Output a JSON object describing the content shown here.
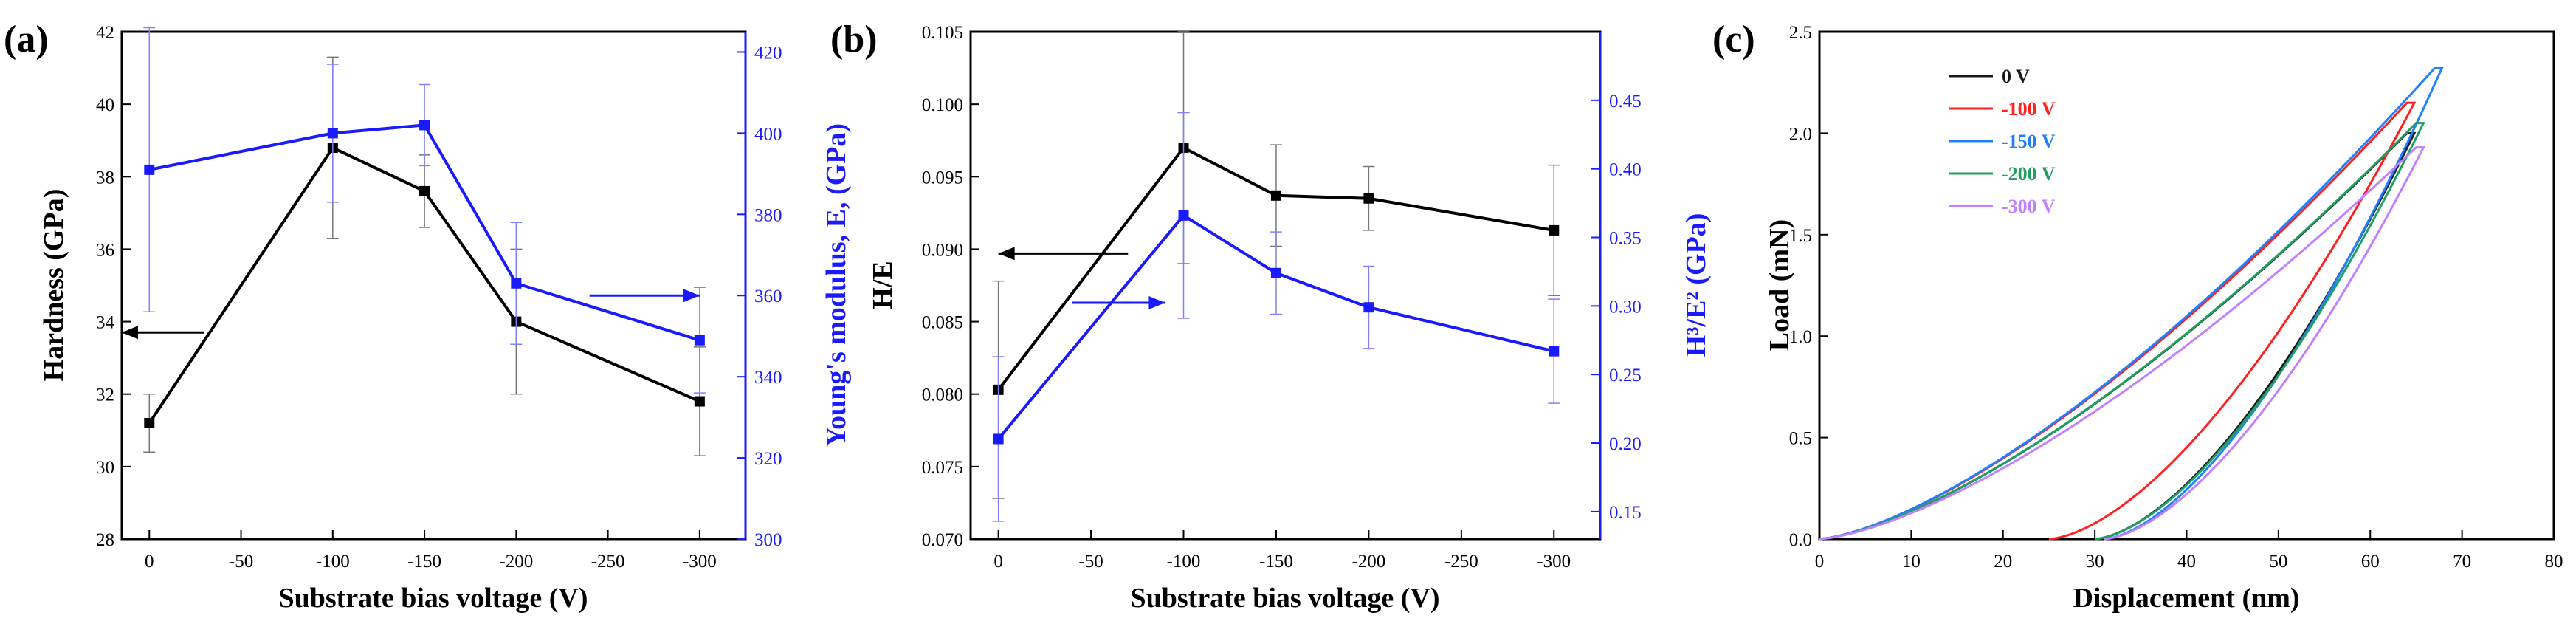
{
  "chart_data": [
    {
      "panel": "(a)",
      "type": "line",
      "xlabel": "Substrate bias voltage (V)",
      "x_ticks": [
        "0",
        "-50",
        "-100",
        "-150",
        "-200",
        "-250",
        "-300"
      ],
      "x": [
        0,
        -100,
        -150,
        -200,
        -300
      ],
      "xlim": [
        15,
        -325
      ],
      "ylabel_left": "Hardness (GPa)",
      "ylim_left": [
        28,
        42
      ],
      "y_ticks_left": [
        "28",
        "30",
        "32",
        "34",
        "36",
        "38",
        "40",
        "42"
      ],
      "ylabel_right": "Young's modulus, E, (GPa)",
      "ylim_right": [
        300,
        425
      ],
      "y_ticks_right": [
        "300",
        "320",
        "340",
        "360",
        "380",
        "400",
        "420"
      ],
      "series": [
        {
          "name": "Hardness",
          "axis": "left",
          "color": "#000000",
          "values": [
            31.2,
            38.8,
            37.6,
            34.0,
            31.8
          ],
          "errors": [
            0.8,
            2.5,
            1.0,
            2.0,
            1.5
          ]
        },
        {
          "name": "Young's modulus",
          "axis": "right",
          "color": "#1a1aff",
          "values": [
            391,
            400,
            402,
            363,
            349
          ],
          "errors": [
            35,
            17,
            10,
            15,
            13
          ]
        }
      ],
      "arrows": [
        {
          "axis": "left",
          "direction": "left",
          "x_from": -30,
          "x_to": 15,
          "y": 33.7
        },
        {
          "axis": "right",
          "direction": "right",
          "x_from": -240,
          "x_to": -300,
          "y": 360
        }
      ]
    },
    {
      "panel": "(b)",
      "type": "line",
      "xlabel": "Substrate bias voltage (V)",
      "x_ticks": [
        "0",
        "-50",
        "-100",
        "-150",
        "-200",
        "-250",
        "-300"
      ],
      "x": [
        0,
        -100,
        -150,
        -200,
        -300
      ],
      "xlim": [
        15,
        -325
      ],
      "ylabel_left": "H/E",
      "ylim_left": [
        0.07,
        0.105
      ],
      "y_ticks_left": [
        "0.070",
        "0.075",
        "0.080",
        "0.085",
        "0.090",
        "0.095",
        "0.100",
        "0.105"
      ],
      "ylabel_right": "H³/E² (GPa)",
      "ylim_right": [
        0.13,
        0.5
      ],
      "y_ticks_right": [
        "0.15",
        "0.20",
        "0.25",
        "0.30",
        "0.35",
        "0.40",
        "0.45"
      ],
      "series": [
        {
          "name": "H/E",
          "axis": "left",
          "color": "#000000",
          "values": [
            0.0803,
            0.097,
            0.0937,
            0.0935,
            0.0913
          ],
          "errors": [
            0.0075,
            0.008,
            0.0035,
            0.0022,
            0.0045
          ]
        },
        {
          "name": "H³/E²",
          "axis": "right",
          "color": "#1a1aff",
          "values": [
            0.203,
            0.366,
            0.324,
            0.299,
            0.267
          ],
          "errors": [
            0.06,
            0.075,
            0.03,
            0.03,
            0.038
          ]
        }
      ],
      "arrows": [
        {
          "axis": "left",
          "direction": "left",
          "x_from": -70,
          "x_to": 0,
          "y": 0.0897
        },
        {
          "axis": "left",
          "direction": "right",
          "x_from": -40,
          "x_to": -90,
          "y": 0.0863
        }
      ]
    },
    {
      "panel": "(c)",
      "type": "line",
      "xlabel": "Displacement (nm)",
      "ylabel": "Load (mN)",
      "xlim": [
        0,
        80
      ],
      "ylim": [
        0,
        2.5
      ],
      "x_ticks": [
        "0",
        "10",
        "20",
        "30",
        "40",
        "50",
        "60",
        "70",
        "80"
      ],
      "y_ticks": [
        "0.0",
        "0.5",
        "1.0",
        "1.5",
        "2.0",
        "2.5"
      ],
      "legend_position": "top-left",
      "series": [
        {
          "name": "0 V",
          "color": "#1a1a1a",
          "max_disp": 64,
          "max_load": 2.0,
          "residual_disp": 30
        },
        {
          "name": "-100 V",
          "color": "#ff2020",
          "max_disp": 64,
          "max_load": 2.15,
          "residual_disp": 25
        },
        {
          "name": "-150 V",
          "color": "#2080ff",
          "max_disp": 67,
          "max_load": 2.32,
          "residual_disp": 31
        },
        {
          "name": "-200 V",
          "color": "#20a060",
          "max_disp": 65,
          "max_load": 2.05,
          "residual_disp": 30
        },
        {
          "name": "-300 V",
          "color": "#c080ff",
          "max_disp": 65,
          "max_load": 1.93,
          "residual_disp": 31
        }
      ]
    }
  ]
}
